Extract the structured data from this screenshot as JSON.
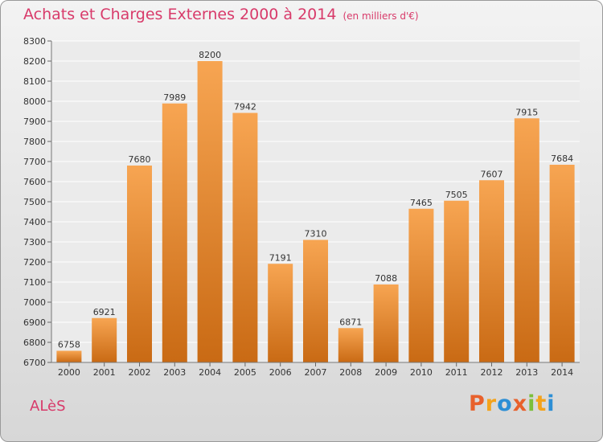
{
  "header": {
    "title": "Achats et Charges Externes 2000 à 2014",
    "unit": "(en milliers d'€)"
  },
  "footer": {
    "city": "ALèS",
    "logo_letters": [
      "P",
      "r",
      "o",
      "x",
      "i",
      "t",
      "i"
    ],
    "logo_colors": [
      "#e8612c",
      "#f4a31b",
      "#2d8fd5",
      "#e8612c",
      "#7cbf3a",
      "#f4a31b",
      "#2d8fd5"
    ]
  },
  "colors": {
    "bar_top": "#f7a552",
    "bar_bottom": "#c96a14",
    "title": "#d83a6a",
    "plot_bg": "#ebebeb",
    "grid": "#ffffff"
  },
  "chart_data": {
    "type": "bar",
    "title": "Achats et Charges Externes 2000 à 2014",
    "subtitle": "(en milliers d'€)",
    "xlabel": "",
    "ylabel": "",
    "categories": [
      "2000",
      "2001",
      "2002",
      "2003",
      "2004",
      "2005",
      "2006",
      "2007",
      "2008",
      "2009",
      "2010",
      "2011",
      "2012",
      "2013",
      "2014"
    ],
    "values": [
      6758,
      6921,
      7680,
      7989,
      8200,
      7942,
      7191,
      7310,
      6871,
      7088,
      7465,
      7505,
      7607,
      7915,
      7684
    ],
    "ylim": [
      6700,
      8300
    ],
    "ytick_step": 100,
    "grid": true,
    "data_labels": true
  }
}
